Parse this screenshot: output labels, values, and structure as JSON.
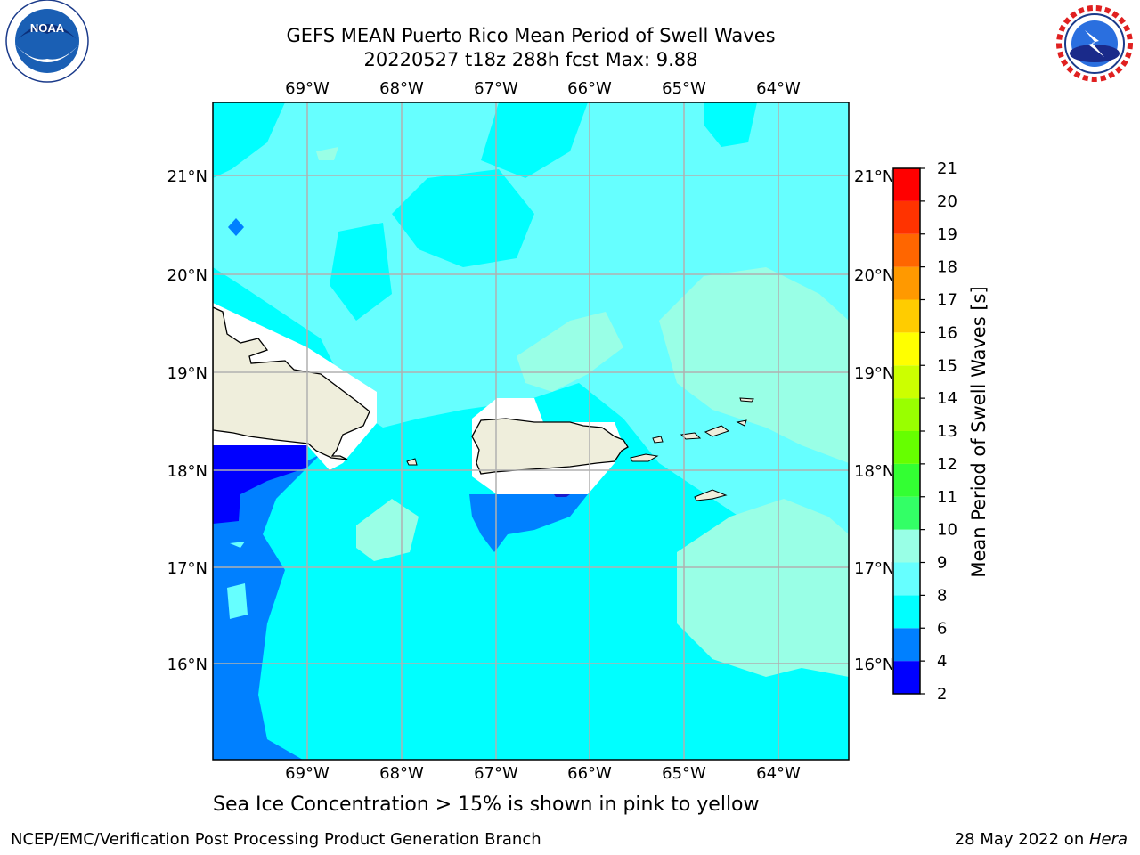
{
  "title_line1": "GEFS MEAN Puerto Rico Mean Period of Swell Waves",
  "title_line2": "20220527 t18z 288h fcst   Max: 9.88",
  "subtitle": "Sea Ice Concentration > 15% is shown in pink to yellow",
  "footer_left": "NCEP/EMC/Verification Post Processing Product Generation Branch",
  "footer_right_text": "28 May 2022 on ",
  "footer_right_host": "Hera",
  "longitude_labels": [
    "69°W",
    "68°W",
    "67°W",
    "66°W",
    "65°W",
    "64°W"
  ],
  "latitude_labels": [
    "21°N",
    "20°N",
    "19°N",
    "18°N",
    "17°N",
    "16°N"
  ],
  "colorbar": {
    "label": "Mean Period of Swell Waves [s]",
    "ticks": [
      "2",
      "4",
      "6",
      "8",
      "9",
      "10",
      "11",
      "12",
      "13",
      "14",
      "15",
      "16",
      "17",
      "18",
      "19",
      "20",
      "21"
    ],
    "colors": [
      "#0000ff",
      "#0080ff",
      "#00ffff",
      "#66ffff",
      "#99ffe6",
      "#33ff66",
      "#33ff33",
      "#66ff00",
      "#99ff00",
      "#ccff00",
      "#ffff00",
      "#ffcc00",
      "#ff9900",
      "#ff6600",
      "#ff3300",
      "#ff0000"
    ]
  },
  "logos": {
    "noaa": "NOAA",
    "nws": "NATIONAL WEATHER SERVICE"
  }
}
